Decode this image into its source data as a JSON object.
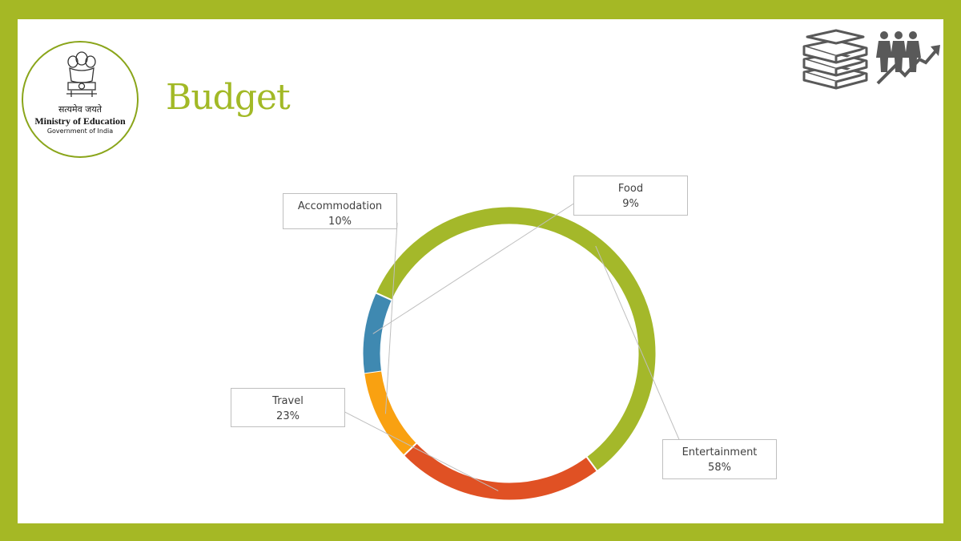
{
  "colors": {
    "frame": "#a5b825",
    "title": "#a2b926",
    "food": "#3f89b1",
    "entertainment": "#a4b82a",
    "travel": "#e05124",
    "accommodation": "#f9a111",
    "icon": "#595959"
  },
  "logo": {
    "motto": "सत्यमेव जयते",
    "ministry": "Ministry of Education",
    "government": "Government of India"
  },
  "slide": {
    "title": "Budget"
  },
  "chart_data": {
    "type": "pie",
    "variant": "doughnut",
    "title": "",
    "slices": [
      {
        "label": "Food",
        "value": 9,
        "value_label": "9%"
      },
      {
        "label": "Entertainment",
        "value": 58,
        "value_label": "58%"
      },
      {
        "label": "Travel",
        "value": 23,
        "value_label": "23%"
      },
      {
        "label": "Accommodation",
        "value": 10,
        "value_label": "10%"
      }
    ],
    "legend": "none"
  }
}
